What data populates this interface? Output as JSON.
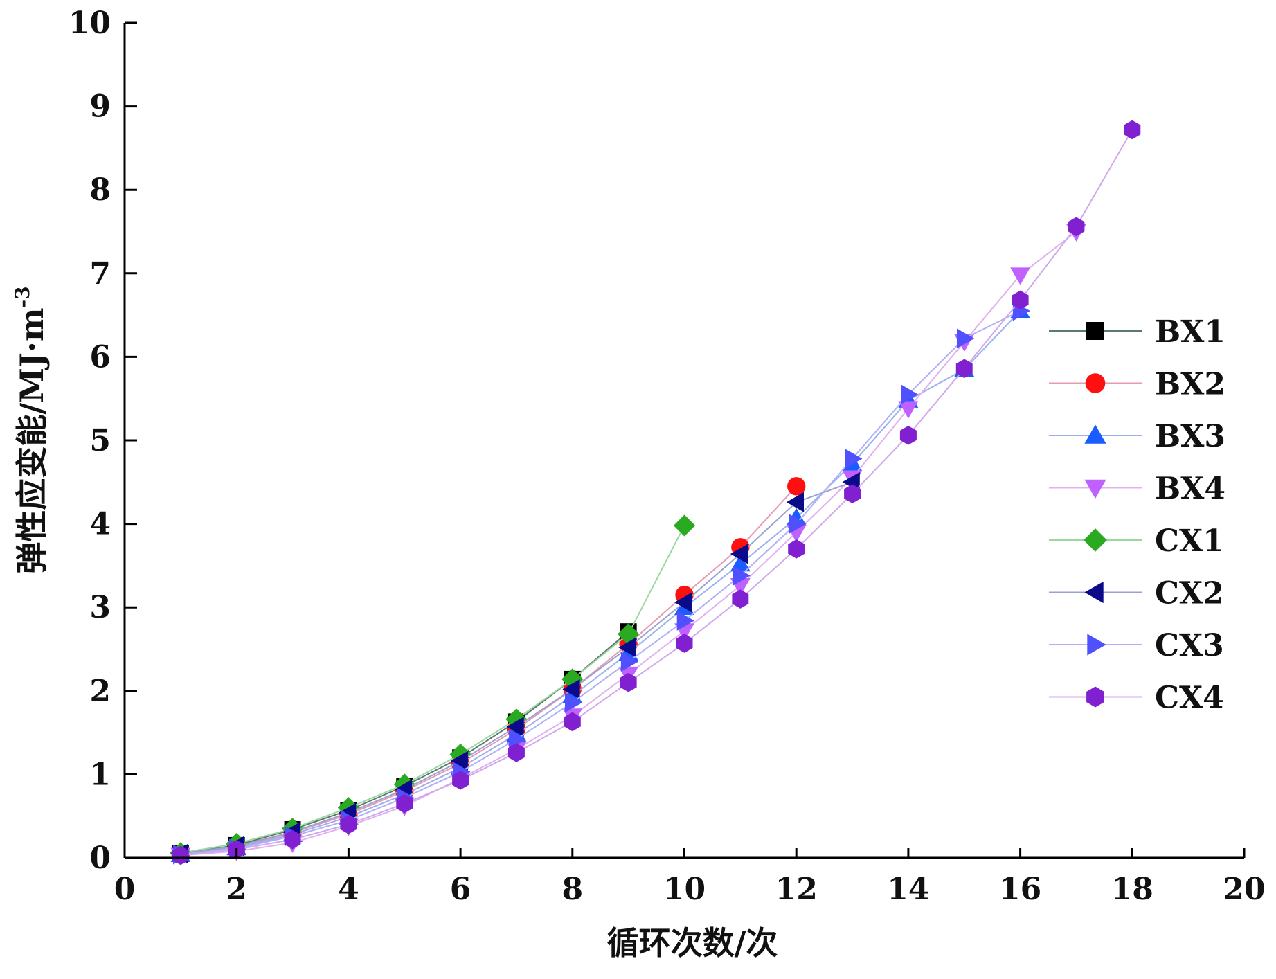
{
  "chart_data": {
    "type": "line",
    "xlabel": "循环次数/次",
    "ylabel": "弹性应变能/MJ·m",
    "ylabel_sup": "-3",
    "xlim": [
      0,
      20
    ],
    "ylim": [
      0,
      10
    ],
    "xticks": [
      0,
      2,
      4,
      6,
      8,
      10,
      12,
      14,
      16,
      18,
      20
    ],
    "yticks": [
      0,
      1,
      2,
      3,
      4,
      5,
      6,
      7,
      8,
      9,
      10
    ],
    "grid": false,
    "legend_position": "right",
    "series": [
      {
        "name": "BX1",
        "color": "#000000",
        "line_color": "#5a7a70",
        "marker": "square",
        "x": [
          1,
          2,
          3,
          4,
          5,
          6,
          7,
          8,
          9
        ],
        "y": [
          0.05,
          0.15,
          0.34,
          0.57,
          0.86,
          1.2,
          1.63,
          2.14,
          2.71
        ]
      },
      {
        "name": "BX2",
        "color": "#ff1010",
        "line_color": "#e89ab0",
        "marker": "circle",
        "x": [
          1,
          2,
          3,
          4,
          5,
          6,
          7,
          8,
          9,
          10,
          11,
          12
        ],
        "y": [
          0.04,
          0.13,
          0.3,
          0.52,
          0.8,
          1.13,
          1.54,
          2.02,
          2.56,
          3.15,
          3.72,
          4.45
        ]
      },
      {
        "name": "BX3",
        "color": "#1a5cff",
        "line_color": "#9ab0f0",
        "marker": "triangle-up",
        "x": [
          1,
          2,
          3,
          4,
          5,
          6,
          7,
          8,
          9,
          10,
          11,
          12,
          13,
          14,
          15,
          16
        ],
        "y": [
          0.04,
          0.12,
          0.28,
          0.49,
          0.76,
          1.08,
          1.48,
          1.94,
          2.45,
          3.0,
          3.52,
          4.07,
          4.72,
          5.48,
          5.85,
          6.55
        ]
      },
      {
        "name": "BX4",
        "color": "#c060ff",
        "line_color": "#e0b0f0",
        "marker": "triangle-down",
        "x": [
          1,
          2,
          3,
          4,
          5,
          6,
          7,
          8,
          9,
          10,
          11,
          12,
          13,
          14,
          15,
          16,
          17
        ],
        "y": [
          0.03,
          0.08,
          0.18,
          0.38,
          0.62,
          0.95,
          1.3,
          1.7,
          2.2,
          2.72,
          3.26,
          3.9,
          4.55,
          5.38,
          6.18,
          6.98,
          7.5
        ]
      },
      {
        "name": "CX1",
        "color": "#2aaa20",
        "line_color": "#9ad8a0",
        "marker": "diamond",
        "x": [
          1,
          2,
          3,
          4,
          5,
          6,
          7,
          8,
          9,
          10
        ],
        "y": [
          0.06,
          0.17,
          0.35,
          0.6,
          0.88,
          1.24,
          1.66,
          2.14,
          2.68,
          3.98
        ]
      },
      {
        "name": "CX2",
        "color": "#0a0a8a",
        "line_color": "#9aa0d0",
        "marker": "triangle-left",
        "x": [
          1,
          2,
          3,
          4,
          5,
          6,
          7,
          8,
          9,
          10,
          11,
          12,
          13
        ],
        "y": [
          0.05,
          0.14,
          0.31,
          0.54,
          0.82,
          1.16,
          1.57,
          2.02,
          2.52,
          3.06,
          3.64,
          4.26,
          4.5
        ]
      },
      {
        "name": "CX3",
        "color": "#5050ff",
        "line_color": "#b0b0f8",
        "marker": "triangle-right",
        "x": [
          1,
          2,
          3,
          4,
          5,
          6,
          7,
          8,
          9,
          10,
          11,
          12,
          13,
          14,
          15,
          16
        ],
        "y": [
          0.04,
          0.11,
          0.26,
          0.45,
          0.72,
          1.03,
          1.42,
          1.86,
          2.35,
          2.84,
          3.38,
          4.0,
          4.78,
          5.55,
          6.22,
          6.55
        ]
      },
      {
        "name": "CX4",
        "color": "#8020d0",
        "line_color": "#d0a8ec",
        "marker": "hexagon",
        "x": [
          1,
          2,
          3,
          4,
          5,
          6,
          7,
          8,
          9,
          10,
          11,
          12,
          13,
          14,
          15,
          16,
          17,
          18
        ],
        "y": [
          0.03,
          0.1,
          0.22,
          0.4,
          0.65,
          0.93,
          1.26,
          1.63,
          2.1,
          2.57,
          3.1,
          3.7,
          4.36,
          5.06,
          5.86,
          6.68,
          7.56,
          8.72
        ]
      }
    ]
  }
}
